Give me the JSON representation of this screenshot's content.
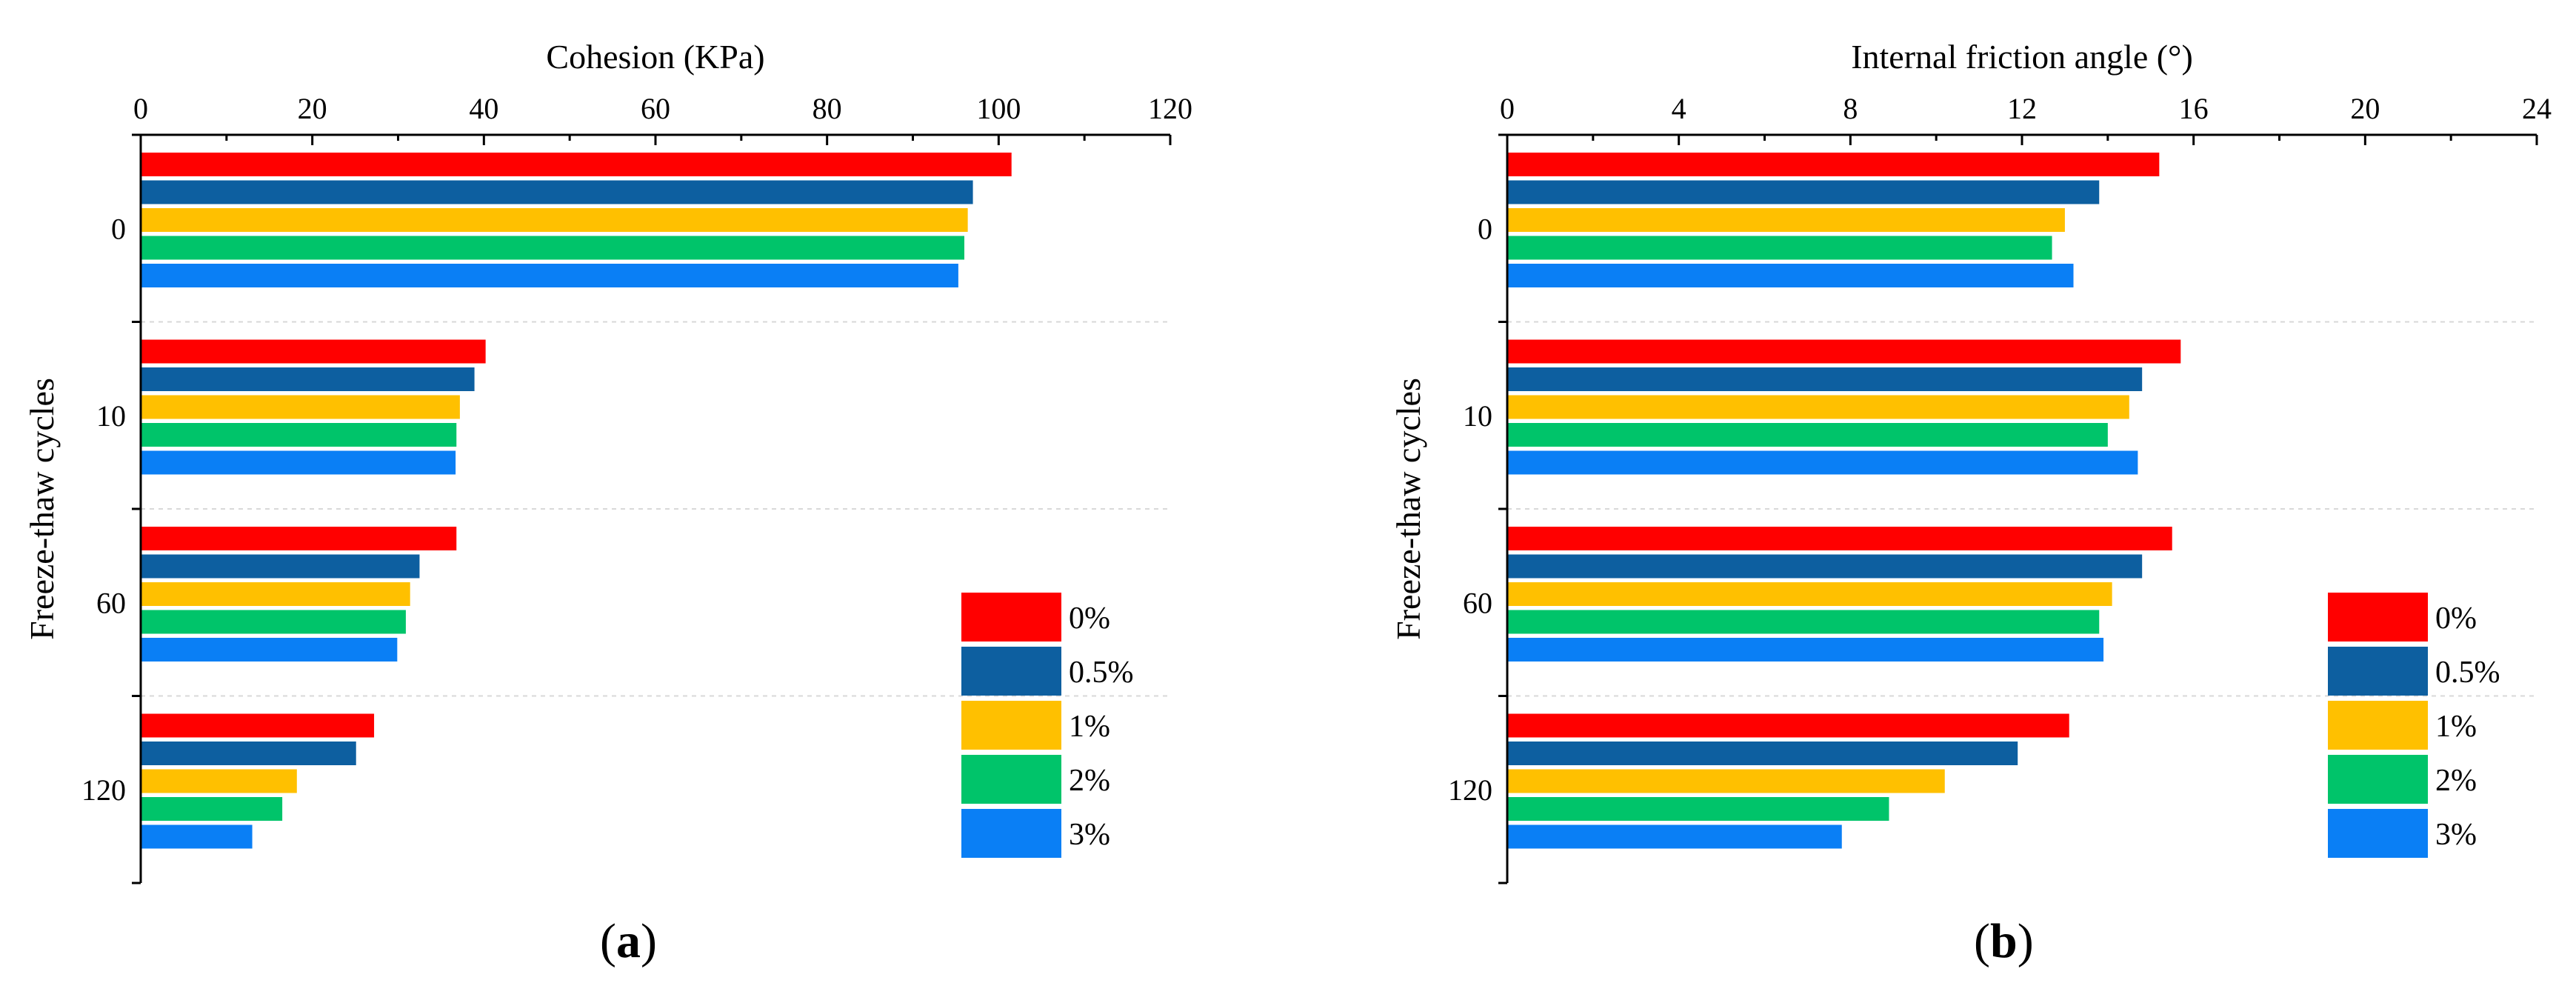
{
  "colors": {
    "0%": "#ff0000",
    "0.5%": "#0d5fa0",
    "1%": "#ffc000",
    "2%": "#00c46a",
    "3%": "#0a7ff5",
    "axis": "#000000",
    "grid": "#d8d8d8"
  },
  "chart_data": [
    {
      "type": "bar",
      "orientation": "horizontal",
      "panel_label_open": "(",
      "panel_label_letter": "a",
      "panel_label_close": ")",
      "title": "Cohesion (KPa)",
      "xlabel": "Cohesion (KPa)",
      "ylabel": "Freeze-thaw cycles",
      "xlim": [
        0,
        120
      ],
      "xticks": [
        0,
        20,
        40,
        60,
        80,
        100,
        120
      ],
      "xtick_labels": [
        "0",
        "20",
        "40",
        "60",
        "80",
        "100",
        "120"
      ],
      "categories": [
        "0",
        "10",
        "60",
        "120"
      ],
      "legend_position": "bottom-right",
      "series": [
        {
          "name": "0%",
          "values": [
            101.5,
            40.2,
            36.8,
            27.2
          ]
        },
        {
          "name": "0.5%",
          "values": [
            97.0,
            38.9,
            32.5,
            25.1
          ]
        },
        {
          "name": "1%",
          "values": [
            96.4,
            37.2,
            31.4,
            18.2
          ]
        },
        {
          "name": "2%",
          "values": [
            96.0,
            36.8,
            30.9,
            16.5
          ]
        },
        {
          "name": "3%",
          "values": [
            95.3,
            36.7,
            29.9,
            13.0
          ]
        }
      ]
    },
    {
      "type": "bar",
      "orientation": "horizontal",
      "panel_label_open": "(",
      "panel_label_letter": "b",
      "panel_label_close": ")",
      "title": "Internal friction angle (°)",
      "xlabel": "Internal friction angle (°)",
      "ylabel": "Freeze-thaw cycles",
      "xlim": [
        0,
        24
      ],
      "xticks": [
        0,
        4,
        8,
        12,
        16,
        20,
        24
      ],
      "xtick_labels": [
        "0",
        "4",
        "8",
        "12",
        "16",
        "20",
        "24"
      ],
      "categories": [
        "0",
        "10",
        "60",
        "120"
      ],
      "legend_position": "bottom-right",
      "series": [
        {
          "name": "0%",
          "values": [
            15.2,
            15.7,
            15.5,
            13.1
          ]
        },
        {
          "name": "0.5%",
          "values": [
            13.8,
            14.8,
            14.8,
            11.9
          ]
        },
        {
          "name": "1%",
          "values": [
            13.0,
            14.5,
            14.1,
            10.2
          ]
        },
        {
          "name": "2%",
          "values": [
            12.7,
            14.0,
            13.8,
            8.9
          ]
        },
        {
          "name": "3%",
          "values": [
            13.2,
            14.7,
            13.9,
            7.8
          ]
        }
      ]
    }
  ]
}
